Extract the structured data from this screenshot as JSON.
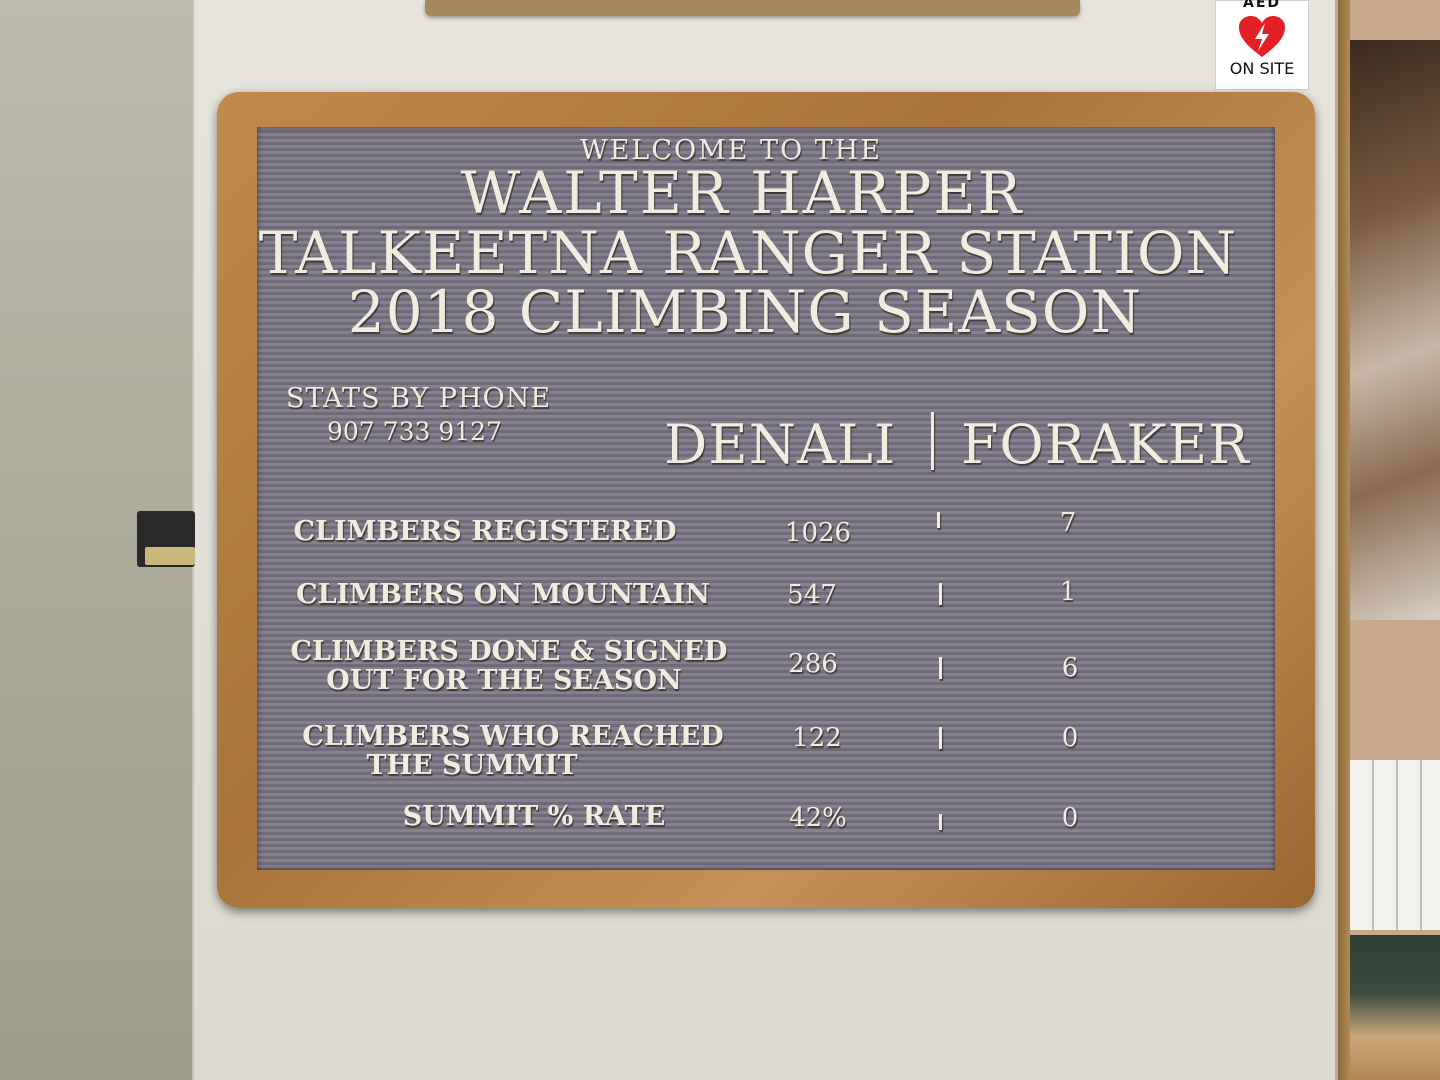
{
  "aed_sign": {
    "title": "AED",
    "status": "ON SITE"
  },
  "board": {
    "welcome": "WELCOME TO THE",
    "title_line1": "WALTER HARPER",
    "title_line2": "TALKEETNA RANGER STATION",
    "title_line3": "2018 CLIMBING SEASON",
    "stats_by_phone_label": "STATS BY PHONE",
    "phone_number": "907 733 9127",
    "columns": [
      "DENALI",
      "FORAKER"
    ],
    "rows": [
      {
        "label_line1": "CLIMBERS REGISTERED",
        "label_line2": "",
        "denali": "1026",
        "foraker": "7"
      },
      {
        "label_line1": "CLIMBERS ON MOUNTAIN",
        "label_line2": "",
        "denali": "547",
        "foraker": "1"
      },
      {
        "label_line1": "CLIMBERS DONE & SIGNED",
        "label_line2": "OUT FOR THE SEASON",
        "denali": "286",
        "foraker": "6"
      },
      {
        "label_line1": "CLIMBERS WHO REACHED",
        "label_line2": "THE SUMMIT",
        "denali": "122",
        "foraker": "0"
      },
      {
        "label_line1": "SUMMIT % RATE",
        "label_line2": "",
        "denali": "42%",
        "foraker": "0"
      }
    ]
  },
  "colors": {
    "felt": "#7d7885",
    "frame_wood": "#b07a3e",
    "letters": "#f1ece0"
  }
}
